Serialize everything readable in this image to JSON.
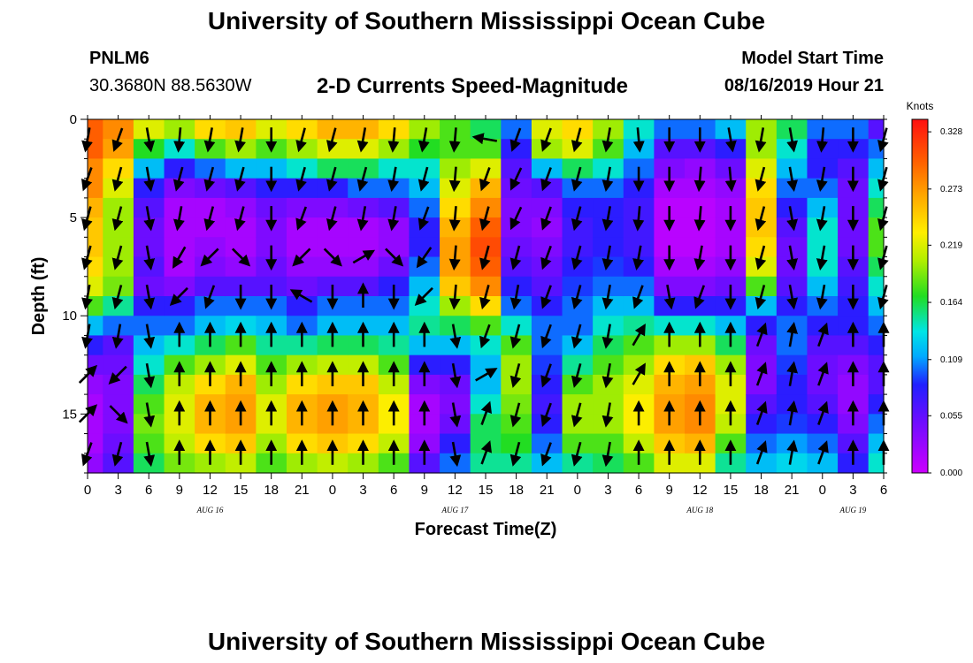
{
  "header": {
    "title_top": "University of Southern Mississippi Ocean Cube",
    "title_bottom": "University of Southern Mississippi Ocean Cube",
    "station_id": "PNLM6",
    "station_coords": "30.3680N 88.5630W",
    "plot_title": "2-D Currents Speed-Magnitude",
    "model_start_label": "Model Start Time",
    "model_start_value": "08/16/2019 Hour 21"
  },
  "chart_data": {
    "type": "heatmap",
    "title": "2-D Currents Speed-Magnitude",
    "xlabel": "Forecast Time(Z)",
    "ylabel": "Depth (ft)",
    "x_tick_labels": [
      "0",
      "3",
      "6",
      "9",
      "12",
      "15",
      "18",
      "21",
      "0",
      "3",
      "6",
      "9",
      "12",
      "15",
      "18",
      "21",
      "0",
      "3",
      "6",
      "9",
      "12",
      "15",
      "18",
      "21",
      "0",
      "3",
      "6"
    ],
    "x_range_hours": [
      0,
      78
    ],
    "day_labels": [
      {
        "hour": 12,
        "text": "AUG 16"
      },
      {
        "hour": 36,
        "text": "AUG 17"
      },
      {
        "hour": 60,
        "text": "AUG 18"
      },
      {
        "hour": 75,
        "text": "AUG 19"
      }
    ],
    "y_tick_labels": [
      "0",
      "5",
      "10",
      "15"
    ],
    "y_ticks": [
      0,
      5,
      10,
      15
    ],
    "ylim": [
      0,
      18
    ],
    "colorbar": {
      "label": "Knots",
      "ticks": [
        "0.328",
        "0.273",
        "0.219",
        "0.164",
        "0.109",
        "0.055",
        "0.000"
      ],
      "range": [
        0,
        0.34
      ]
    },
    "depth_bins_ft": [
      0,
      1,
      2,
      3,
      4,
      5,
      6,
      7,
      8,
      9,
      10,
      11,
      12,
      13,
      14,
      15,
      16,
      17
    ],
    "speed_columns": [
      {
        "hour": 0,
        "speeds": [
          0.3,
          0.3,
          0.28,
          0.28,
          0.26,
          0.25,
          0.25,
          0.24,
          0.22,
          0.18,
          0.12,
          0.08,
          0.05,
          0.03,
          0.02,
          0.02,
          0.02,
          0.03
        ]
      },
      {
        "hour": 3,
        "speeds": [
          0.28,
          0.27,
          0.24,
          0.22,
          0.2,
          0.2,
          0.2,
          0.2,
          0.19,
          0.15,
          0.1,
          0.06,
          0.05,
          0.04,
          0.04,
          0.04,
          0.05,
          0.06
        ]
      },
      {
        "hour": 6,
        "speeds": [
          0.22,
          0.17,
          0.12,
          0.08,
          0.06,
          0.05,
          0.05,
          0.06,
          0.05,
          0.08,
          0.1,
          0.12,
          0.14,
          0.16,
          0.18,
          0.19,
          0.18,
          0.16
        ]
      },
      {
        "hour": 9,
        "speeds": [
          0.2,
          0.14,
          0.08,
          0.04,
          0.02,
          0.02,
          0.02,
          0.02,
          0.04,
          0.08,
          0.1,
          0.14,
          0.18,
          0.21,
          0.22,
          0.22,
          0.21,
          0.19
        ]
      },
      {
        "hour": 12,
        "speeds": [
          0.24,
          0.18,
          0.1,
          0.05,
          0.02,
          0.02,
          0.03,
          0.04,
          0.06,
          0.1,
          0.12,
          0.16,
          0.2,
          0.24,
          0.26,
          0.26,
          0.24,
          0.2
        ]
      },
      {
        "hour": 15,
        "speeds": [
          0.25,
          0.2,
          0.12,
          0.06,
          0.03,
          0.02,
          0.02,
          0.03,
          0.06,
          0.1,
          0.13,
          0.18,
          0.22,
          0.26,
          0.27,
          0.27,
          0.25,
          0.21
        ]
      },
      {
        "hour": 18,
        "speeds": [
          0.22,
          0.18,
          0.12,
          0.08,
          0.05,
          0.04,
          0.04,
          0.05,
          0.06,
          0.1,
          0.12,
          0.15,
          0.18,
          0.2,
          0.22,
          0.22,
          0.2,
          0.18
        ]
      },
      {
        "hour": 21,
        "speeds": [
          0.24,
          0.2,
          0.14,
          0.08,
          0.04,
          0.02,
          0.02,
          0.03,
          0.05,
          0.08,
          0.1,
          0.15,
          0.2,
          0.24,
          0.26,
          0.26,
          0.24,
          0.2
        ]
      },
      {
        "hour": 24,
        "speeds": [
          0.26,
          0.22,
          0.16,
          0.08,
          0.04,
          0.02,
          0.02,
          0.03,
          0.06,
          0.1,
          0.12,
          0.16,
          0.21,
          0.25,
          0.27,
          0.27,
          0.25,
          0.21
        ]
      },
      {
        "hour": 27,
        "speeds": [
          0.26,
          0.22,
          0.16,
          0.1,
          0.05,
          0.02,
          0.02,
          0.03,
          0.06,
          0.1,
          0.12,
          0.16,
          0.21,
          0.25,
          0.26,
          0.26,
          0.24,
          0.2
        ]
      },
      {
        "hour": 30,
        "speeds": [
          0.24,
          0.2,
          0.14,
          0.1,
          0.06,
          0.03,
          0.03,
          0.05,
          0.08,
          0.1,
          0.12,
          0.15,
          0.18,
          0.21,
          0.23,
          0.23,
          0.21,
          0.18
        ]
      },
      {
        "hour": 33,
        "speeds": [
          0.2,
          0.17,
          0.14,
          0.12,
          0.1,
          0.08,
          0.08,
          0.1,
          0.12,
          0.14,
          0.15,
          0.12,
          0.08,
          0.04,
          0.02,
          0.02,
          0.03,
          0.06
        ]
      },
      {
        "hour": 36,
        "speeds": [
          0.18,
          0.18,
          0.2,
          0.22,
          0.24,
          0.26,
          0.27,
          0.27,
          0.25,
          0.2,
          0.16,
          0.12,
          0.08,
          0.05,
          0.04,
          0.05,
          0.08,
          0.1
        ]
      },
      {
        "hour": 39,
        "speeds": [
          0.16,
          0.18,
          0.22,
          0.26,
          0.28,
          0.3,
          0.31,
          0.3,
          0.28,
          0.24,
          0.18,
          0.14,
          0.12,
          0.12,
          0.14,
          0.16,
          0.16,
          0.15
        ]
      },
      {
        "hour": 42,
        "speeds": [
          0.1,
          0.08,
          0.06,
          0.05,
          0.04,
          0.04,
          0.05,
          0.06,
          0.08,
          0.1,
          0.14,
          0.18,
          0.2,
          0.2,
          0.19,
          0.18,
          0.17,
          0.15
        ]
      },
      {
        "hour": 45,
        "speeds": [
          0.22,
          0.2,
          0.12,
          0.06,
          0.04,
          0.03,
          0.04,
          0.05,
          0.06,
          0.08,
          0.1,
          0.1,
          0.09,
          0.08,
          0.07,
          0.08,
          0.1,
          0.12
        ]
      },
      {
        "hour": 48,
        "speeds": [
          0.24,
          0.22,
          0.16,
          0.1,
          0.08,
          0.07,
          0.07,
          0.08,
          0.09,
          0.1,
          0.1,
          0.12,
          0.15,
          0.18,
          0.2,
          0.2,
          0.18,
          0.15
        ]
      },
      {
        "hour": 51,
        "speeds": [
          0.2,
          0.18,
          0.14,
          0.1,
          0.08,
          0.08,
          0.08,
          0.09,
          0.1,
          0.12,
          0.14,
          0.16,
          0.18,
          0.2,
          0.2,
          0.2,
          0.18,
          0.16
        ]
      },
      {
        "hour": 54,
        "speeds": [
          0.14,
          0.12,
          0.1,
          0.08,
          0.07,
          0.07,
          0.07,
          0.08,
          0.1,
          0.12,
          0.15,
          0.18,
          0.2,
          0.22,
          0.23,
          0.23,
          0.21,
          0.18
        ]
      },
      {
        "hour": 57,
        "speeds": [
          0.1,
          0.06,
          0.04,
          0.02,
          0.01,
          0.01,
          0.01,
          0.02,
          0.04,
          0.08,
          0.14,
          0.2,
          0.24,
          0.26,
          0.27,
          0.27,
          0.25,
          0.22
        ]
      },
      {
        "hour": 60,
        "speeds": [
          0.1,
          0.06,
          0.03,
          0.02,
          0.01,
          0.01,
          0.01,
          0.02,
          0.04,
          0.08,
          0.14,
          0.2,
          0.25,
          0.27,
          0.28,
          0.28,
          0.26,
          0.22
        ]
      },
      {
        "hour": 63,
        "speeds": [
          0.12,
          0.08,
          0.05,
          0.03,
          0.02,
          0.02,
          0.02,
          0.03,
          0.05,
          0.08,
          0.12,
          0.16,
          0.2,
          0.22,
          0.22,
          0.21,
          0.18,
          0.15
        ]
      },
      {
        "hour": 66,
        "speeds": [
          0.2,
          0.2,
          0.22,
          0.24,
          0.25,
          0.25,
          0.24,
          0.22,
          0.18,
          0.12,
          0.08,
          0.05,
          0.04,
          0.04,
          0.06,
          0.08,
          0.1,
          0.12
        ]
      },
      {
        "hour": 69,
        "speeds": [
          0.16,
          0.14,
          0.12,
          0.1,
          0.08,
          0.06,
          0.05,
          0.05,
          0.06,
          0.08,
          0.1,
          0.1,
          0.09,
          0.08,
          0.08,
          0.09,
          0.11,
          0.13
        ]
      },
      {
        "hour": 72,
        "speeds": [
          0.1,
          0.08,
          0.08,
          0.1,
          0.12,
          0.14,
          0.14,
          0.14,
          0.12,
          0.1,
          0.08,
          0.06,
          0.05,
          0.05,
          0.06,
          0.08,
          0.1,
          0.12
        ]
      },
      {
        "hour": 75,
        "speeds": [
          0.1,
          0.08,
          0.06,
          0.05,
          0.05,
          0.05,
          0.05,
          0.06,
          0.07,
          0.08,
          0.08,
          0.06,
          0.04,
          0.03,
          0.03,
          0.04,
          0.06,
          0.08
        ]
      },
      {
        "hour": 78,
        "speeds": [
          0.06,
          0.1,
          0.12,
          0.14,
          0.16,
          0.18,
          0.18,
          0.16,
          0.14,
          0.12,
          0.1,
          0.08,
          0.06,
          0.06,
          0.08,
          0.1,
          0.12,
          0.14
        ]
      }
    ],
    "vector_depths_ft": [
      1,
      3,
      5,
      7,
      9,
      11,
      13,
      15,
      17
    ],
    "vector_directions_deg": [
      {
        "hour": 0,
        "dirs": [
          190,
          200,
          195,
          195,
          190,
          190,
          45,
          45,
          200
        ]
      },
      {
        "hour": 3,
        "dirs": [
          200,
          195,
          195,
          195,
          195,
          190,
          225,
          135,
          195
        ]
      },
      {
        "hour": 6,
        "dirs": [
          170,
          170,
          170,
          170,
          170,
          170,
          170,
          170,
          170
        ]
      },
      {
        "hour": 9,
        "dirs": [
          185,
          195,
          190,
          210,
          225,
          0,
          0,
          0,
          0
        ]
      },
      {
        "hour": 12,
        "dirs": [
          190,
          195,
          195,
          225,
          200,
          0,
          0,
          0,
          0
        ]
      },
      {
        "hour": 15,
        "dirs": [
          190,
          195,
          195,
          135,
          180,
          0,
          0,
          0,
          0
        ]
      },
      {
        "hour": 18,
        "dirs": [
          180,
          180,
          180,
          180,
          180,
          0,
          0,
          0,
          0
        ]
      },
      {
        "hour": 21,
        "dirs": [
          195,
          195,
          200,
          225,
          300,
          0,
          0,
          0,
          0
        ]
      },
      {
        "hour": 24,
        "dirs": [
          195,
          195,
          195,
          135,
          180,
          0,
          0,
          0,
          0
        ]
      },
      {
        "hour": 27,
        "dirs": [
          190,
          195,
          190,
          60,
          0,
          0,
          0,
          0,
          0
        ]
      },
      {
        "hour": 30,
        "dirs": [
          185,
          190,
          190,
          135,
          180,
          0,
          0,
          0,
          0
        ]
      },
      {
        "hour": 33,
        "dirs": [
          190,
          195,
          200,
          215,
          225,
          0,
          0,
          0,
          0
        ]
      },
      {
        "hour": 36,
        "dirs": [
          185,
          185,
          185,
          185,
          185,
          170,
          170,
          170,
          170
        ]
      },
      {
        "hour": 39,
        "dirs": [
          280,
          200,
          195,
          195,
          195,
          200,
          60,
          20,
          20
        ]
      },
      {
        "hour": 42,
        "dirs": [
          200,
          205,
          205,
          195,
          190,
          195,
          195,
          195,
          195
        ]
      },
      {
        "hour": 45,
        "dirs": [
          200,
          200,
          200,
          200,
          200,
          200,
          200,
          200,
          200
        ]
      },
      {
        "hour": 48,
        "dirs": [
          195,
          195,
          195,
          195,
          195,
          195,
          195,
          195,
          195
        ]
      },
      {
        "hour": 51,
        "dirs": [
          190,
          190,
          190,
          190,
          190,
          190,
          190,
          190,
          190
        ]
      },
      {
        "hour": 54,
        "dirs": [
          175,
          180,
          185,
          190,
          200,
          30,
          30,
          0,
          0
        ]
      },
      {
        "hour": 57,
        "dirs": [
          180,
          180,
          180,
          180,
          170,
          0,
          0,
          0,
          0
        ]
      },
      {
        "hour": 60,
        "dirs": [
          180,
          185,
          185,
          190,
          200,
          0,
          0,
          0,
          0
        ]
      },
      {
        "hour": 63,
        "dirs": [
          170,
          175,
          180,
          180,
          180,
          0,
          0,
          0,
          0
        ]
      },
      {
        "hour": 66,
        "dirs": [
          190,
          195,
          195,
          195,
          195,
          20,
          20,
          20,
          20
        ]
      },
      {
        "hour": 69,
        "dirs": [
          170,
          170,
          170,
          170,
          170,
          10,
          10,
          10,
          10
        ]
      },
      {
        "hour": 72,
        "dirs": [
          185,
          190,
          190,
          190,
          190,
          20,
          20,
          20,
          20
        ]
      },
      {
        "hour": 75,
        "dirs": [
          180,
          180,
          180,
          180,
          180,
          0,
          0,
          0,
          0
        ]
      },
      {
        "hour": 78,
        "dirs": [
          195,
          195,
          195,
          195,
          195,
          0,
          0,
          0,
          0
        ]
      }
    ]
  }
}
